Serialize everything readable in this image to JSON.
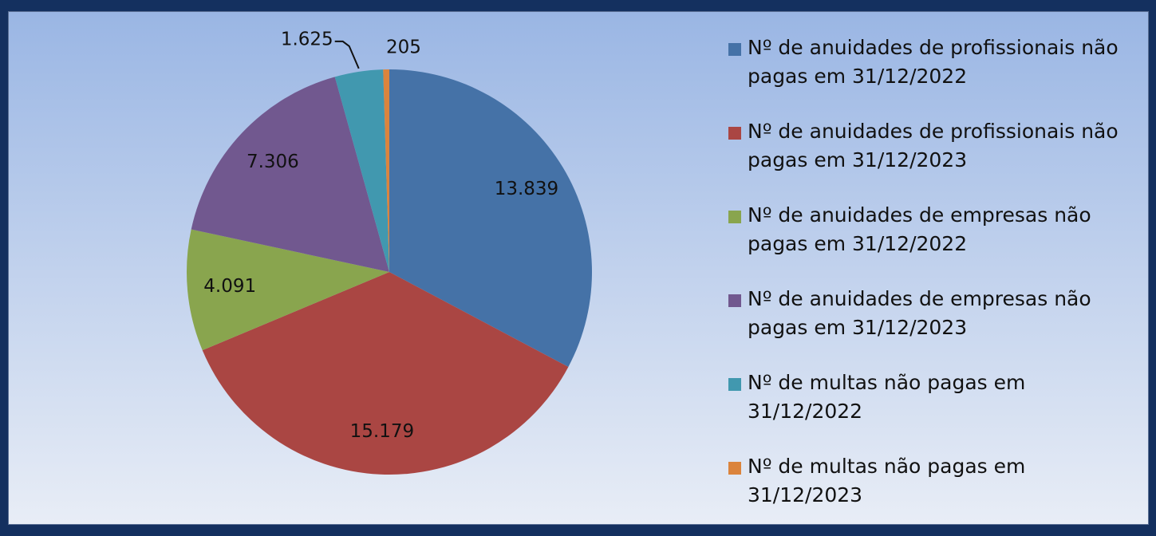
{
  "chart_data": {
    "type": "pie",
    "categories": [
      "Nº de anuidades de profissionais não pagas em 31/12/2022",
      "Nº de anuidades de profissionais não pagas em 31/12/2023",
      "Nº de anuidades de empresas não pagas em 31/12/2022",
      "Nº de anuidades de empresas não pagas em 31/12/2023",
      "Nº de multas não pagas em 31/12/2022",
      "Nº de multas não pagas em 31/12/2023"
    ],
    "values": [
      13839,
      15179,
      4091,
      7306,
      1625,
      205
    ],
    "value_labels": [
      "13.839",
      "15.179",
      "4.091",
      "7.306",
      "1.625",
      "205"
    ],
    "colors": [
      "#4572a7",
      "#aa4643",
      "#89a54e",
      "#71588f",
      "#4198af",
      "#db843d"
    ],
    "legend": "right"
  }
}
